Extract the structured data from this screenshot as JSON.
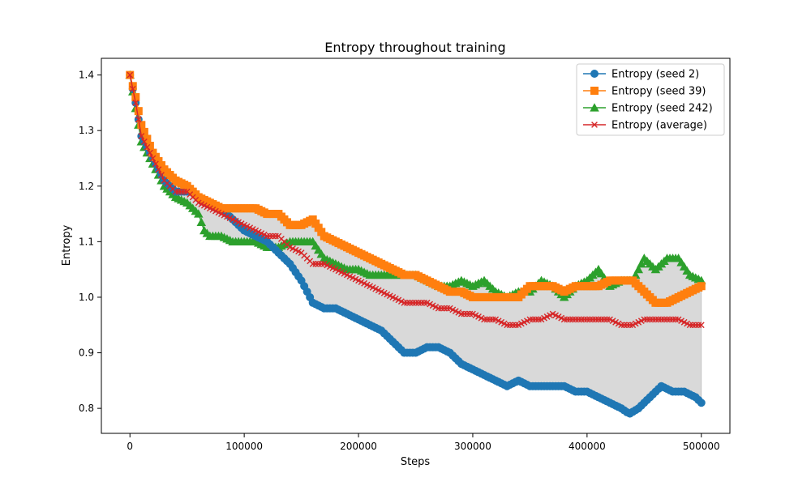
{
  "chart_data": {
    "type": "line",
    "title": "Entropy throughout training",
    "xlabel": "Steps",
    "ylabel": "Entropy",
    "xlim": [
      -25000,
      525000
    ],
    "ylim": [
      0.755,
      1.43
    ],
    "x_ticks": [
      0,
      100000,
      200000,
      300000,
      400000,
      500000
    ],
    "y_ticks": [
      0.8,
      0.9,
      1.0,
      1.1,
      1.2,
      1.3,
      1.4
    ],
    "grid": false,
    "legend_position": "top-right",
    "shaded_band": {
      "between": "min and max of seeds",
      "color": "#d9d9d9"
    },
    "series": [
      {
        "name": "Entropy (seed 2)",
        "color": "#1f77b4",
        "marker": "circle",
        "x": [
          0,
          5000,
          10000,
          20000,
          30000,
          40000,
          50000,
          55000,
          60000,
          70000,
          80000,
          90000,
          100000,
          110000,
          120000,
          130000,
          140000,
          150000,
          160000,
          170000,
          180000,
          190000,
          200000,
          210000,
          220000,
          230000,
          240000,
          250000,
          260000,
          270000,
          280000,
          290000,
          300000,
          310000,
          320000,
          330000,
          340000,
          350000,
          360000,
          370000,
          380000,
          390000,
          400000,
          410000,
          420000,
          430000,
          437000,
          445000,
          455000,
          465000,
          475000,
          485000,
          495000,
          500000
        ],
        "y": [
          1.4,
          1.35,
          1.29,
          1.25,
          1.21,
          1.19,
          1.19,
          1.19,
          1.18,
          1.17,
          1.16,
          1.14,
          1.12,
          1.11,
          1.1,
          1.08,
          1.06,
          1.03,
          0.99,
          0.98,
          0.98,
          0.97,
          0.96,
          0.95,
          0.94,
          0.92,
          0.9,
          0.9,
          0.91,
          0.91,
          0.9,
          0.88,
          0.87,
          0.86,
          0.85,
          0.84,
          0.85,
          0.84,
          0.84,
          0.84,
          0.84,
          0.83,
          0.83,
          0.82,
          0.81,
          0.8,
          0.79,
          0.8,
          0.82,
          0.84,
          0.83,
          0.83,
          0.82,
          0.81
        ]
      },
      {
        "name": "Entropy (seed 39)",
        "color": "#ff7f0e",
        "marker": "square",
        "x": [
          0,
          5000,
          10000,
          20000,
          30000,
          40000,
          50000,
          60000,
          70000,
          80000,
          90000,
          100000,
          110000,
          120000,
          130000,
          140000,
          150000,
          160000,
          170000,
          180000,
          190000,
          200000,
          210000,
          220000,
          230000,
          240000,
          250000,
          260000,
          270000,
          280000,
          290000,
          300000,
          310000,
          320000,
          330000,
          340000,
          350000,
          360000,
          370000,
          380000,
          390000,
          400000,
          410000,
          420000,
          430000,
          440000,
          450000,
          460000,
          470000,
          480000,
          490000,
          500000
        ],
        "y": [
          1.4,
          1.36,
          1.31,
          1.26,
          1.23,
          1.21,
          1.2,
          1.18,
          1.17,
          1.16,
          1.16,
          1.16,
          1.16,
          1.15,
          1.15,
          1.13,
          1.13,
          1.14,
          1.11,
          1.1,
          1.09,
          1.08,
          1.07,
          1.06,
          1.05,
          1.04,
          1.04,
          1.03,
          1.02,
          1.01,
          1.01,
          1.0,
          1.0,
          1.0,
          1.0,
          1.0,
          1.02,
          1.02,
          1.02,
          1.01,
          1.02,
          1.02,
          1.02,
          1.03,
          1.03,
          1.03,
          1.01,
          0.99,
          0.99,
          1.0,
          1.01,
          1.02
        ]
      },
      {
        "name": "Entropy (seed 242)",
        "color": "#2ca02c",
        "marker": "triangle",
        "x": [
          0,
          5000,
          10000,
          20000,
          30000,
          40000,
          50000,
          60000,
          65000,
          70000,
          80000,
          90000,
          100000,
          110000,
          120000,
          130000,
          140000,
          150000,
          160000,
          170000,
          180000,
          190000,
          200000,
          210000,
          220000,
          230000,
          240000,
          250000,
          260000,
          270000,
          280000,
          290000,
          300000,
          310000,
          320000,
          330000,
          340000,
          350000,
          360000,
          370000,
          380000,
          390000,
          400000,
          410000,
          420000,
          430000,
          440000,
          450000,
          460000,
          470000,
          480000,
          490000,
          500000
        ],
        "y": [
          1.4,
          1.34,
          1.28,
          1.24,
          1.2,
          1.18,
          1.17,
          1.15,
          1.12,
          1.11,
          1.11,
          1.1,
          1.1,
          1.1,
          1.09,
          1.09,
          1.1,
          1.1,
          1.1,
          1.07,
          1.06,
          1.05,
          1.05,
          1.04,
          1.04,
          1.04,
          1.04,
          1.04,
          1.03,
          1.02,
          1.02,
          1.03,
          1.02,
          1.03,
          1.01,
          1.0,
          1.01,
          1.01,
          1.03,
          1.02,
          1.0,
          1.02,
          1.03,
          1.05,
          1.02,
          1.03,
          1.03,
          1.07,
          1.05,
          1.07,
          1.07,
          1.04,
          1.03
        ]
      },
      {
        "name": "Entropy (average)",
        "color": "#d62728",
        "marker": "x",
        "x": [
          0,
          5000,
          10000,
          20000,
          30000,
          40000,
          50000,
          60000,
          70000,
          80000,
          90000,
          100000,
          110000,
          120000,
          130000,
          140000,
          150000,
          160000,
          170000,
          180000,
          190000,
          200000,
          210000,
          220000,
          230000,
          240000,
          250000,
          260000,
          270000,
          280000,
          290000,
          300000,
          310000,
          320000,
          330000,
          340000,
          350000,
          360000,
          370000,
          380000,
          390000,
          400000,
          410000,
          420000,
          430000,
          440000,
          450000,
          460000,
          470000,
          480000,
          490000,
          500000
        ],
        "y": [
          1.4,
          1.35,
          1.29,
          1.25,
          1.21,
          1.19,
          1.19,
          1.17,
          1.16,
          1.15,
          1.14,
          1.13,
          1.12,
          1.11,
          1.11,
          1.09,
          1.08,
          1.06,
          1.06,
          1.05,
          1.04,
          1.03,
          1.02,
          1.01,
          1.0,
          0.99,
          0.99,
          0.99,
          0.98,
          0.98,
          0.97,
          0.97,
          0.96,
          0.96,
          0.95,
          0.95,
          0.96,
          0.96,
          0.97,
          0.96,
          0.96,
          0.96,
          0.96,
          0.96,
          0.95,
          0.95,
          0.96,
          0.96,
          0.96,
          0.96,
          0.95,
          0.95
        ]
      }
    ]
  }
}
